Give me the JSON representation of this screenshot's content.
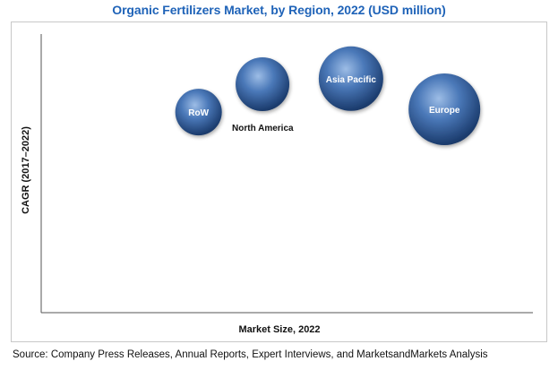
{
  "chart_data": {
    "type": "scatter",
    "title": "Organic Fertilizers Market, by Region, 2022 (USD million)",
    "xlabel": "Market Size, 2022",
    "ylabel": "CAGR (2017–2022)",
    "xlim": [
      0,
      100
    ],
    "ylim": [
      0,
      100
    ],
    "grid": false,
    "axis_ticks": false,
    "points": [
      {
        "label": "RoW",
        "x": 32,
        "y": 72,
        "size": 26,
        "label_position": "inside"
      },
      {
        "label": "North America",
        "x": 45,
        "y": 82,
        "size": 30,
        "label_position": "below-right"
      },
      {
        "label": "Asia Pacific",
        "x": 63,
        "y": 84,
        "size": 36,
        "label_position": "inside"
      },
      {
        "label": "Europe",
        "x": 82,
        "y": 73,
        "size": 40,
        "label_position": "inside"
      }
    ]
  },
  "source": "Source: Company Press Releases, Annual Reports, Expert Interviews, and MarketsandMarkets Analysis",
  "colors": {
    "title": "#1f63b8",
    "bubble_light": "#7fa6d9",
    "bubble_mid": "#4a78b8",
    "bubble_dark": "#1d3f73",
    "axis": "#555555"
  }
}
